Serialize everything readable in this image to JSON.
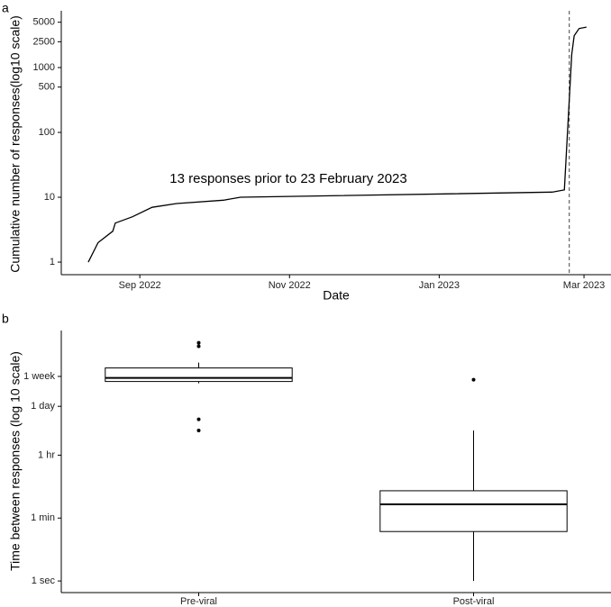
{
  "chart_data": [
    {
      "type": "line",
      "panel_label": "a",
      "x_label": "Date",
      "y_label": "Cumulative number of responses(log10 scale)",
      "annotation": "13 responses prior to 23 February 2023",
      "reference_line": "2023-02-23",
      "x": [
        "2022-08-11",
        "2022-08-15",
        "2022-08-21",
        "2022-08-22",
        "2022-08-29",
        "2022-09-06",
        "2022-09-16",
        "2022-10-05",
        "2022-10-12",
        "2023-02-16",
        "2023-02-21",
        "2023-02-24",
        "2023-02-25",
        "2023-02-27",
        "2023-03-02"
      ],
      "values": [
        1,
        2,
        3,
        4,
        5,
        7,
        8,
        9,
        10,
        12,
        13,
        1600,
        3100,
        4000,
        4200
      ],
      "color": "#000000",
      "xlim": [
        "2022-07-31",
        "2023-03-12"
      ],
      "xticks": [
        {
          "value": "2022-09-01",
          "label": "Sep 2022"
        },
        {
          "value": "2022-11-01",
          "label": "Nov 2022"
        },
        {
          "value": "2023-01-01",
          "label": "Jan 2023"
        },
        {
          "value": "2023-03-01",
          "label": "Mar 2023"
        }
      ],
      "ylim": [
        0.64,
        7500
      ],
      "yticks": [
        1,
        10,
        100,
        500,
        1000,
        2500,
        5000
      ],
      "log_y": true,
      "grid": false
    },
    {
      "type": "box",
      "panel_label": "b",
      "y_label": "Time between responses (log 10 scale)",
      "categories": [
        "Pre-viral",
        "Post-viral"
      ],
      "whisker_low": [
        386000,
        1
      ],
      "q1": [
        435000,
        25
      ],
      "median": [
        550000,
        147
      ],
      "q3": [
        1050000,
        355
      ],
      "whisker_high": [
        1490000,
        18000
      ],
      "outliers": [
        [
          5400000,
          4300000,
          37000,
          18000
        ],
        [
          490000
        ]
      ],
      "color": "#000000",
      "ylim": [
        0.47,
        12000000
      ],
      "yticks": [
        {
          "value": 1,
          "label": "1 sec"
        },
        {
          "value": 60,
          "label": "1 min"
        },
        {
          "value": 3600,
          "label": "1 hr"
        },
        {
          "value": 86400,
          "label": "1 day"
        },
        {
          "value": 604800,
          "label": "1 week"
        }
      ],
      "log_y": true,
      "grid": false
    }
  ]
}
